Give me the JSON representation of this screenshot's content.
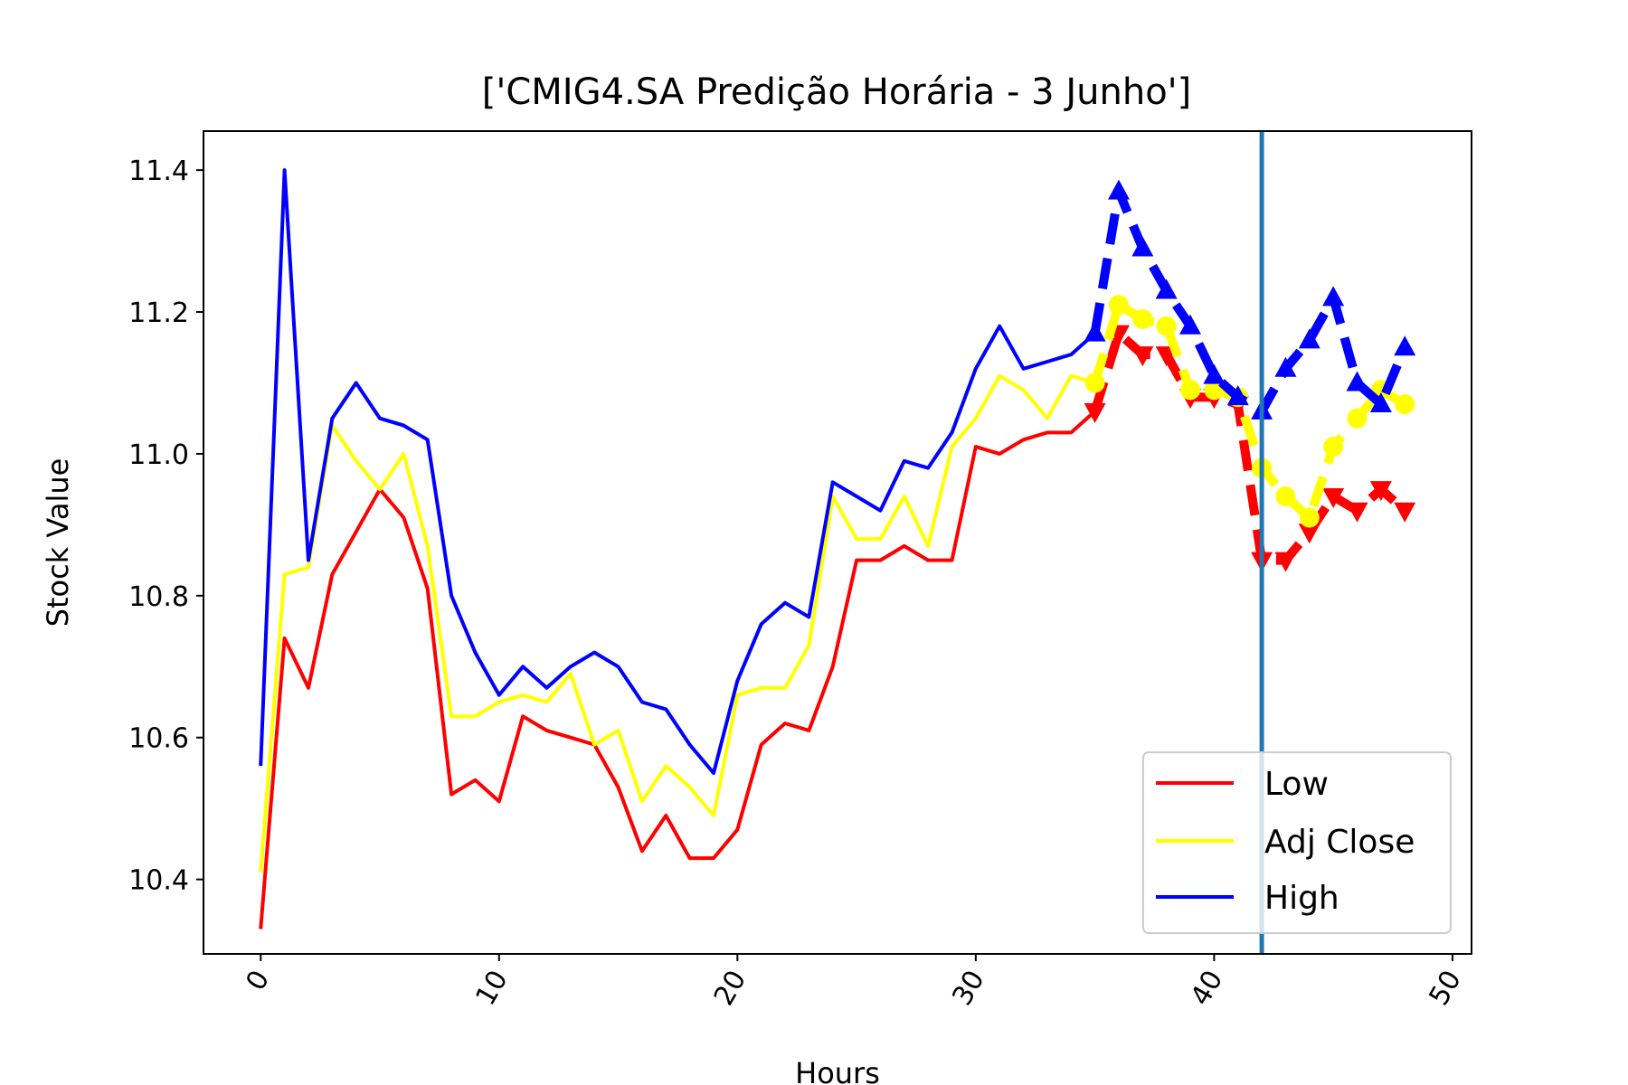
{
  "chart_data": {
    "type": "line",
    "title": "['CMIG4.SA Predição Horária - 3 Junho']",
    "xlabel": "Hours",
    "ylabel": "Stock Value",
    "xlim": [
      -2.4,
      50.8
    ],
    "ylim": [
      10.295,
      11.455
    ],
    "xticks": [
      0,
      10,
      20,
      30,
      40,
      50
    ],
    "xtick_labels": [
      "0",
      "10",
      "20",
      "30",
      "40",
      "50"
    ],
    "yticks": [
      10.4,
      10.6,
      10.8,
      11.0,
      11.2,
      11.4
    ],
    "ytick_labels": [
      "10.4",
      "10.6",
      "10.8",
      "11.0",
      "11.2",
      "11.4"
    ],
    "xtick_rotation_deg": 60,
    "grid": false,
    "legend_position": "lower-right",
    "vline_x": 42,
    "vline_color": "#1f77b4",
    "series": [
      {
        "name": "Low",
        "color": "#ff0000",
        "x": [
          0,
          1,
          2,
          3,
          4,
          5,
          6,
          7,
          8,
          9,
          10,
          11,
          12,
          13,
          14,
          15,
          16,
          17,
          18,
          19,
          20,
          21,
          22,
          23,
          24,
          25,
          26,
          27,
          28,
          29,
          30,
          31,
          32,
          33,
          34,
          35
        ],
        "values": [
          10.33,
          10.74,
          10.67,
          10.83,
          10.89,
          10.95,
          10.91,
          10.81,
          10.52,
          10.54,
          10.51,
          10.63,
          10.61,
          10.6,
          10.59,
          10.53,
          10.44,
          10.49,
          10.43,
          10.43,
          10.47,
          10.59,
          10.62,
          10.61,
          10.7,
          10.85,
          10.85,
          10.87,
          10.85,
          10.85,
          11.01,
          11.0,
          11.02,
          11.03,
          11.03,
          11.06
        ]
      },
      {
        "name": "Adj Close",
        "color": "#ffff00",
        "x": [
          0,
          1,
          2,
          3,
          4,
          5,
          6,
          7,
          8,
          9,
          10,
          11,
          12,
          13,
          14,
          15,
          16,
          17,
          18,
          19,
          20,
          21,
          22,
          23,
          24,
          25,
          26,
          27,
          28,
          29,
          30,
          31,
          32,
          33,
          34,
          35
        ],
        "values": [
          10.41,
          10.83,
          10.84,
          11.04,
          10.99,
          10.95,
          11.0,
          10.87,
          10.63,
          10.63,
          10.65,
          10.66,
          10.65,
          10.69,
          10.59,
          10.61,
          10.51,
          10.56,
          10.53,
          10.49,
          10.66,
          10.67,
          10.67,
          10.73,
          10.94,
          10.88,
          10.88,
          10.94,
          10.87,
          11.01,
          11.05,
          11.11,
          11.09,
          11.05,
          11.11,
          11.1
        ]
      },
      {
        "name": "High",
        "color": "#0000ff",
        "x": [
          0,
          1,
          2,
          3,
          4,
          5,
          6,
          7,
          8,
          9,
          10,
          11,
          12,
          13,
          14,
          15,
          16,
          17,
          18,
          19,
          20,
          21,
          22,
          23,
          24,
          25,
          26,
          27,
          28,
          29,
          30,
          31,
          32,
          33,
          34,
          35
        ],
        "values": [
          10.56,
          11.4,
          10.85,
          11.05,
          11.1,
          11.05,
          11.04,
          11.02,
          10.8,
          10.72,
          10.66,
          10.7,
          10.67,
          10.7,
          10.72,
          10.7,
          10.65,
          10.64,
          10.59,
          10.55,
          10.68,
          10.76,
          10.79,
          10.77,
          10.96,
          10.94,
          10.92,
          10.99,
          10.98,
          11.03,
          11.12,
          11.18,
          11.12,
          11.13,
          11.14,
          11.17
        ]
      }
    ],
    "prediction_series": [
      {
        "name": "Low prediction",
        "color": "#ff0000",
        "marker": "triangle-down",
        "x": [
          35,
          36,
          37,
          38,
          39,
          40,
          41,
          42,
          43,
          44,
          45,
          46,
          47,
          48
        ],
        "values": [
          11.06,
          11.17,
          11.14,
          11.14,
          11.08,
          11.08,
          11.07,
          10.85,
          10.85,
          10.89,
          10.94,
          10.92,
          10.95,
          10.92
        ]
      },
      {
        "name": "Adj Close prediction",
        "color": "#ffff00",
        "marker": "circle",
        "x": [
          35,
          36,
          37,
          38,
          39,
          40,
          41,
          42,
          43,
          44,
          45,
          46,
          47,
          48
        ],
        "values": [
          11.1,
          11.21,
          11.19,
          11.18,
          11.09,
          11.09,
          11.08,
          10.98,
          10.94,
          10.91,
          11.01,
          11.05,
          11.09,
          11.07
        ]
      },
      {
        "name": "High prediction",
        "color": "#0000ff",
        "marker": "triangle-up",
        "x": [
          35,
          36,
          37,
          38,
          39,
          40,
          41,
          42,
          43,
          44,
          45,
          46,
          47,
          48
        ],
        "values": [
          11.17,
          11.37,
          11.29,
          11.23,
          11.18,
          11.11,
          11.08,
          11.06,
          11.12,
          11.16,
          11.22,
          11.1,
          11.07,
          11.15
        ]
      }
    ]
  }
}
